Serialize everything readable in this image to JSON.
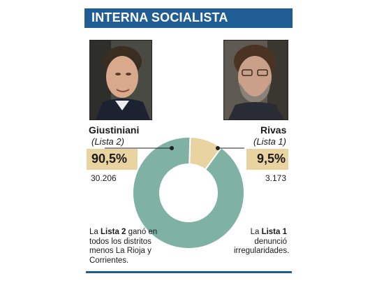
{
  "header": {
    "title": "INTERNA SOCIALISTA"
  },
  "left": {
    "name": "Giustiniani",
    "list": "(Lista 2)",
    "percent": "90,5%",
    "votes": "30.206",
    "note_pre": "La ",
    "note_bold": "Lista 2",
    "note_post": " ganó en todos los distritos menos La Rioja y Corrientes."
  },
  "right": {
    "name": "Rivas",
    "list": "(Lista 1)",
    "percent": "9,5%",
    "votes": "3.173",
    "note_pre": "La ",
    "note_bold": "Lista 1",
    "note_post": " denunció irregularidades."
  },
  "colors": {
    "header": "#1f5d93",
    "lista2": "#7fb2a3",
    "lista1": "#e9d3a0"
  },
  "chart_data": {
    "type": "pie",
    "donut": true,
    "title": "INTERNA SOCIALISTA",
    "slices": [
      {
        "name": "Giustiniani (Lista 2)",
        "value": 90.5,
        "votes": 30206,
        "color": "#7fb2a3"
      },
      {
        "name": "Rivas (Lista 1)",
        "value": 9.5,
        "votes": 3173,
        "color": "#e9d3a0"
      }
    ]
  }
}
